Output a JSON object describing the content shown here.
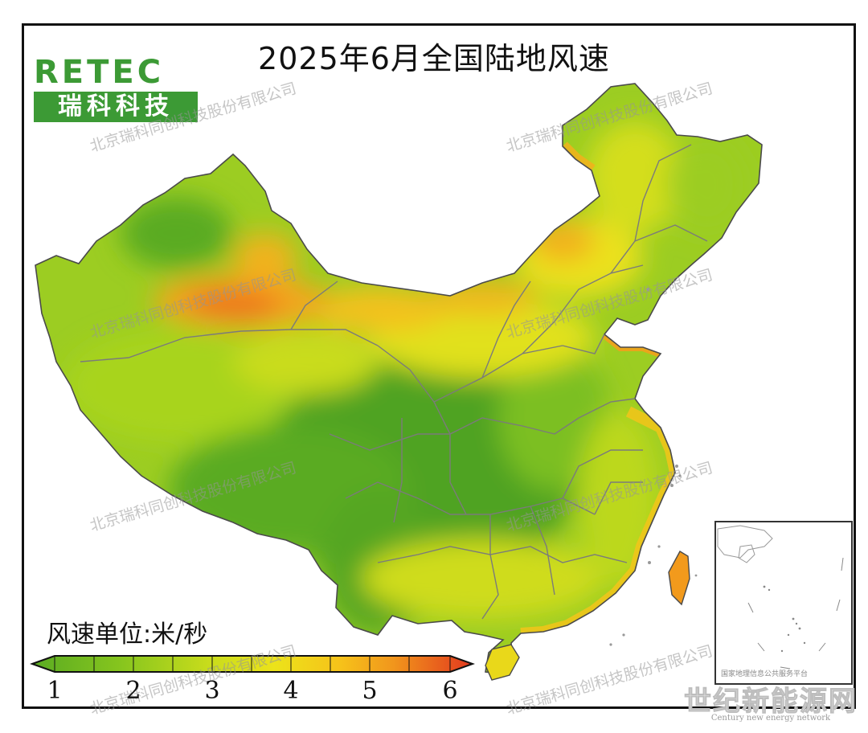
{
  "title": "2025年6月全国陆地风速",
  "logo": {
    "brand": "RETEC",
    "name_cn": "瑞科科技"
  },
  "watermark_text": "北京瑞科同创科技股份有限公司",
  "legend": {
    "title": "风速单位:米/秒",
    "ticks": [
      "1",
      "2",
      "3",
      "4",
      "5",
      "6"
    ],
    "colors": [
      "#5aab22",
      "#7fc41c",
      "#b2d61e",
      "#e9e31a",
      "#f6c21a",
      "#f1961c",
      "#ea6a1e",
      "#e2381e"
    ]
  },
  "inset": {
    "label": "国家地理信息公共服务平台"
  },
  "site_mark": {
    "name": "世纪新能源网",
    "subtitle": "Century new energy network"
  },
  "colors": {
    "low": "#5aab22",
    "mid": "#d9e21e",
    "high": "#f39a1c",
    "peak": "#e24a1e"
  }
}
